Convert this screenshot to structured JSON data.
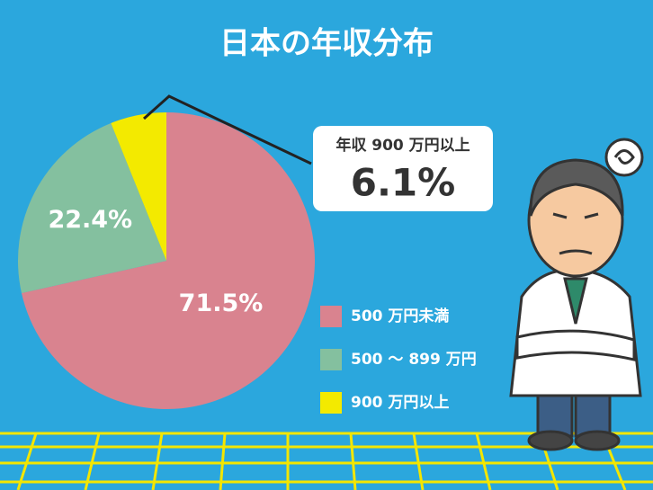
{
  "chart_data": {
    "type": "pie",
    "title": "日本の年収分布",
    "categories": [
      "500 万円未満",
      "500 ～ 899 万円",
      "900 万円以上"
    ],
    "values": [
      71.5,
      22.4,
      6.1
    ],
    "value_labels": [
      "71.5%",
      "22.4%",
      "6.1%"
    ],
    "colors": [
      "#d9838f",
      "#84c09f",
      "#f3ea00"
    ],
    "annotation": "年収 900 万円以上"
  }
}
